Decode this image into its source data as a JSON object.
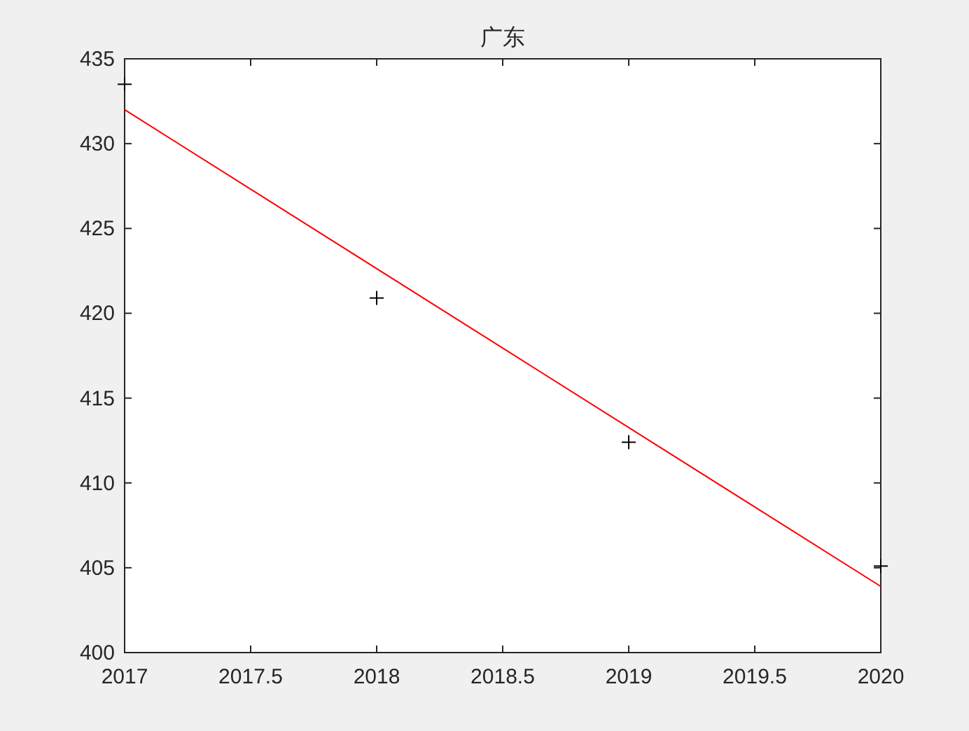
{
  "chart_data": {
    "type": "scatter",
    "title": "广东",
    "x": [
      2017,
      2018,
      2019,
      2020
    ],
    "series": [
      {
        "color": "#000000",
        "marker": "cross",
        "values": [
          433.5,
          420.9,
          412.4,
          405.1
        ]
      },
      {
        "type": "line",
        "color": "#ff0000",
        "line_style": "solid",
        "x": [
          2017,
          2020
        ],
        "values": [
          432.0,
          403.9
        ]
      }
    ],
    "xlim": [
      2017,
      2020
    ],
    "xticks": [
      2017,
      2017.5,
      2018,
      2018.5,
      2019,
      2019.5,
      2020
    ],
    "ylim": [
      400,
      435
    ],
    "yticks": [
      400,
      405,
      410,
      415,
      420,
      425,
      430,
      435
    ],
    "grid": false
  }
}
